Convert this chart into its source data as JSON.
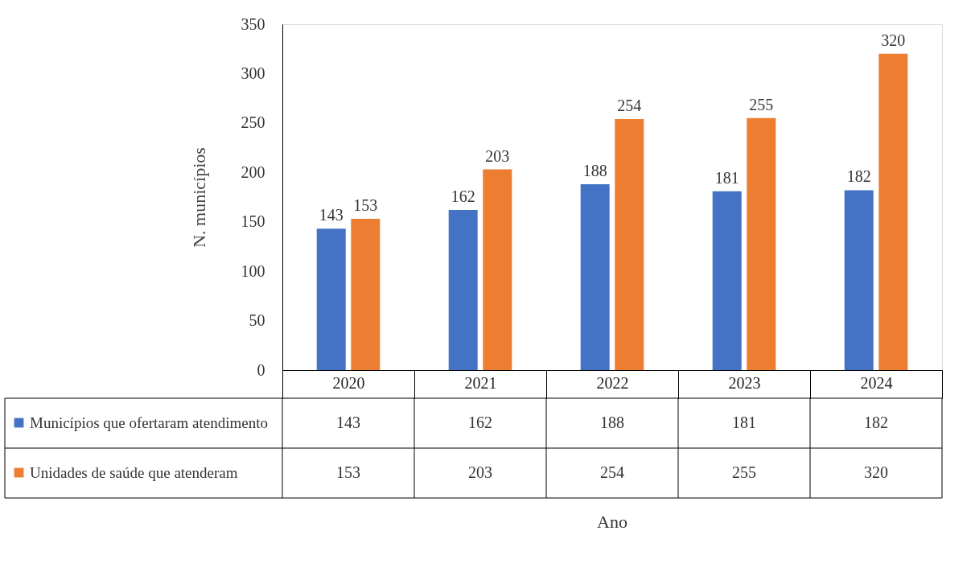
{
  "chart_data": {
    "type": "bar",
    "ylabel": "N. municípios",
    "categories": [
      "2020",
      "2021",
      "2022",
      "2023",
      "2024"
    ],
    "series": [
      {
        "name": "Municípios que ofertaram atendimento",
        "color": "#4472c4",
        "values": [
          143,
          162,
          188,
          181,
          182
        ],
        "value_labels": [
          "143",
          "162",
          "188",
          "181",
          "182"
        ]
      },
      {
        "name": "Unidades de saúde que atenderam",
        "color": "#ed7d31",
        "values": [
          153,
          203,
          254,
          255,
          320
        ],
        "value_labels": [
          "153",
          "203",
          "254",
          "255",
          "320"
        ]
      }
    ],
    "ylim": [
      0,
      350
    ],
    "yticks": [
      0,
      50,
      100,
      150,
      200,
      250,
      300,
      350
    ],
    "grid": false,
    "legend": "bottom",
    "annotations": [
      "143",
      "162",
      "188",
      "181",
      "182",
      "153",
      "203",
      "254",
      "255",
      "320",
      "Ano"
    ]
  }
}
